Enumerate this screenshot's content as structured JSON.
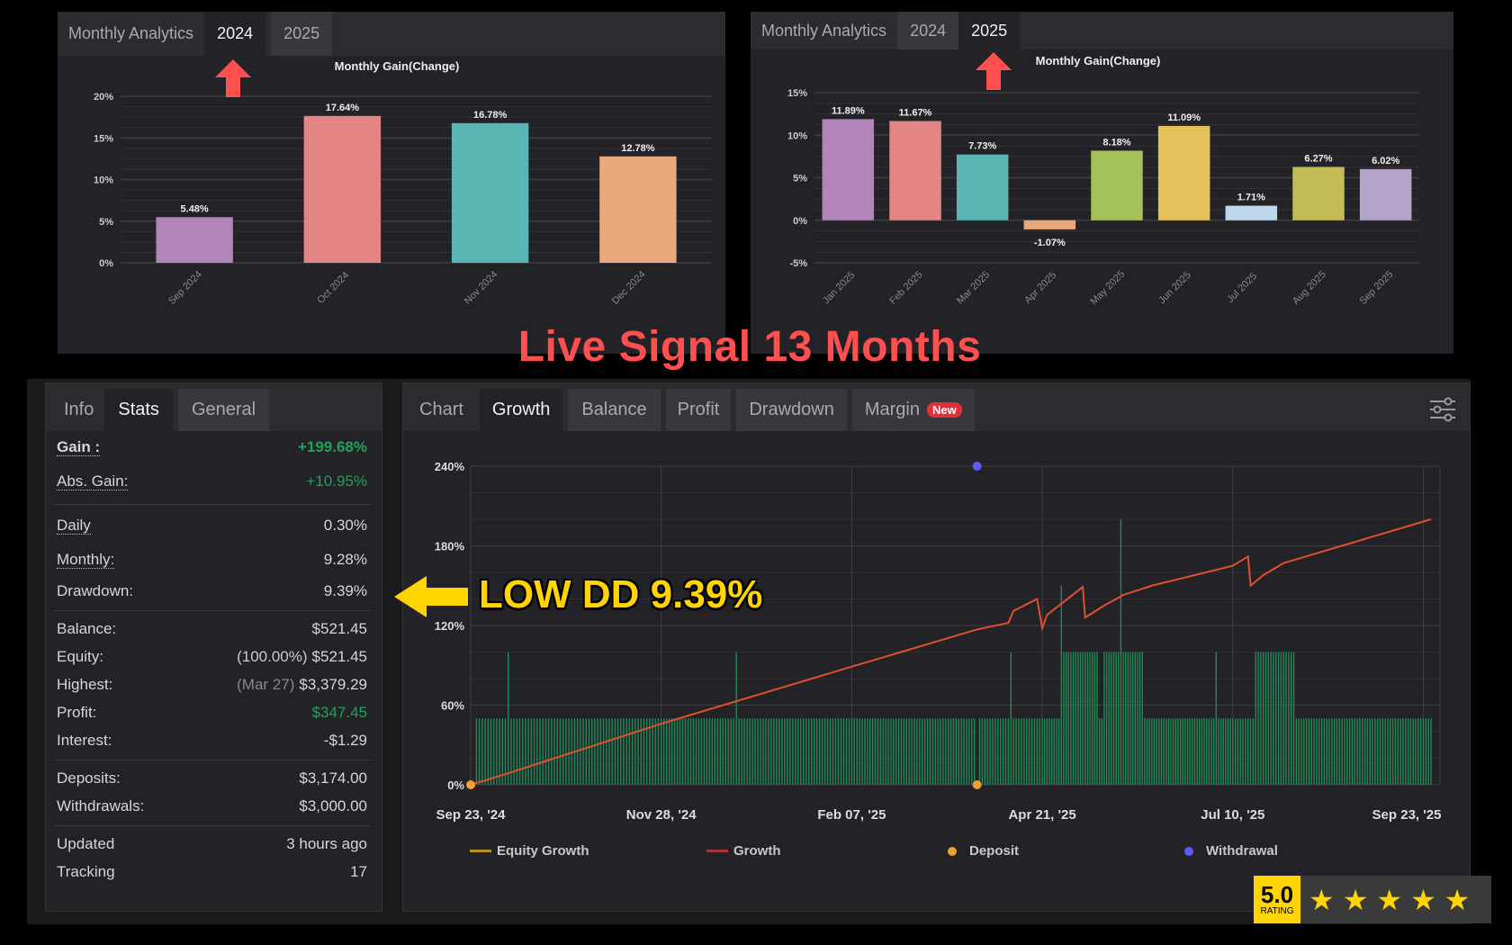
{
  "headline": "Live Signal 13 Months",
  "annotation": "LOW DD 9.39%",
  "analytics_2024": {
    "tabs": [
      "Monthly Analytics",
      "2024",
      "2025"
    ],
    "active_tab": "2024"
  },
  "analytics_2025": {
    "tabs": [
      "Monthly Analytics",
      "2024",
      "2025"
    ],
    "active_tab": "2025"
  },
  "stats": {
    "tabs": [
      "Info",
      "Stats",
      "General"
    ],
    "active_tab": "Stats",
    "gain": {
      "label": "Gain :",
      "value": "+199.68%"
    },
    "abs_gain": {
      "label": "Abs. Gain:",
      "value": "+10.95%"
    },
    "daily": {
      "label": "Daily",
      "value": "0.30%"
    },
    "monthly": {
      "label": "Monthly:",
      "value": "9.28%"
    },
    "drawdown": {
      "label": "Drawdown:",
      "value": "9.39%"
    },
    "balance": {
      "label": "Balance:",
      "value": "$521.45"
    },
    "equity": {
      "label": "Equity:",
      "sub": "(100.00%)",
      "value": "$521.45"
    },
    "highest": {
      "label": "Highest:",
      "sub": "(Mar 27)",
      "value": "$3,379.29"
    },
    "profit": {
      "label": "Profit:",
      "value": "$347.45"
    },
    "interest": {
      "label": "Interest:",
      "value": "-$1.29"
    },
    "deposits": {
      "label": "Deposits:",
      "value": "$3,174.00"
    },
    "withdrawals": {
      "label": "Withdrawals:",
      "value": "$3,000.00"
    },
    "updated": {
      "label": "Updated",
      "value": "3 hours ago"
    },
    "tracking": {
      "label": "Tracking",
      "value": "17"
    }
  },
  "growth_panel": {
    "tabs": [
      "Chart",
      "Growth",
      "Balance",
      "Profit",
      "Drawdown",
      "Margin"
    ],
    "active_tab": "Growth",
    "new_badge": "New",
    "settings_icon": "sliders-icon",
    "legend": [
      "Equity Growth",
      "Growth",
      "Deposit",
      "Withdrawal"
    ]
  },
  "rating": {
    "value": "5.0",
    "label": "RATING",
    "stars": 5
  },
  "colors": {
    "accent_red": "#ff4f4f",
    "annotation_yellow": "#ffd400",
    "gain_green": "#1fa35a",
    "growth_line": "#e0502f",
    "bars_green": "#1e8a55",
    "deposit": "#f0a030",
    "withdrawal": "#5a5aff",
    "equity_line": "#b8902a"
  },
  "chart_data": [
    {
      "type": "bar",
      "title": "Monthly Gain(Change)",
      "categories": [
        "Sep 2024",
        "Oct 2024",
        "Nov 2024",
        "Dec 2024"
      ],
      "values": [
        5.48,
        17.64,
        16.78,
        12.78
      ],
      "labels": [
        "5.48%",
        "17.64%",
        "16.78%",
        "12.78%"
      ],
      "colors": [
        "#b185b7",
        "#e38585",
        "#5ab5b5",
        "#e8a87c"
      ],
      "ylim": [
        0,
        20
      ],
      "yticks": [
        0,
        5,
        10,
        15,
        20
      ],
      "ytick_labels": [
        "0%",
        "5%",
        "10%",
        "15%",
        "20%"
      ],
      "grid": true
    },
    {
      "type": "bar",
      "title": "Monthly Gain(Change)",
      "categories": [
        "Jan 2025",
        "Feb 2025",
        "Mar 2025",
        "Apr 2025",
        "May 2025",
        "Jun 2025",
        "Jul 2025",
        "Aug 2025",
        "Sep 2025"
      ],
      "values": [
        11.89,
        11.67,
        7.73,
        -1.07,
        8.18,
        11.09,
        1.71,
        6.27,
        6.02
      ],
      "labels": [
        "11.89%",
        "11.67%",
        "7.73%",
        "-1.07%",
        "8.18%",
        "11.09%",
        "1.71%",
        "6.27%",
        "6.02%"
      ],
      "colors": [
        "#b185b7",
        "#e38585",
        "#5ab5b5",
        "#e8a87c",
        "#a5c25a",
        "#e3c25a",
        "#bcd8ea",
        "#c2bc55",
        "#b3a3c8"
      ],
      "ylim": [
        -5,
        15
      ],
      "yticks": [
        -5,
        0,
        5,
        10,
        15
      ],
      "ytick_labels": [
        "-5%",
        "0%",
        "5%",
        "10%",
        "15%"
      ],
      "grid": true
    },
    {
      "type": "line",
      "ylim": [
        0,
        240
      ],
      "yticks": [
        0,
        60,
        120,
        180,
        240
      ],
      "ytick_labels": [
        "0%",
        "60%",
        "120%",
        "180%",
        "240%"
      ],
      "x_ticks": [
        {
          "date": "2024-09-23",
          "label": "Sep 23, '24"
        },
        {
          "date": "2024-11-28",
          "label": "Nov 28, '24"
        },
        {
          "date": "2025-02-07",
          "label": "Feb 07, '25"
        },
        {
          "date": "2025-04-21",
          "label": "Apr 21, '25"
        },
        {
          "date": "2025-07-10",
          "label": "Jul 10, '25"
        },
        {
          "date": "2025-09-23",
          "label": "Sep 23, '25"
        }
      ],
      "x_end": "2025-09-29",
      "series": [
        {
          "name": "Growth",
          "points": [
            [
              "2024-09-23",
              0
            ],
            [
              "2024-10-05",
              8
            ],
            [
              "2024-11-28",
              46
            ],
            [
              "2025-02-07",
              89
            ],
            [
              "2025-03-27",
              117
            ],
            [
              "2025-04-08",
              122
            ],
            [
              "2025-04-10",
              131
            ],
            [
              "2025-04-19",
              140
            ],
            [
              "2025-04-21",
              118
            ],
            [
              "2025-04-23",
              128
            ],
            [
              "2025-05-08",
              149
            ],
            [
              "2025-05-09",
              126
            ],
            [
              "2025-05-17",
              135
            ],
            [
              "2025-05-25",
              143
            ],
            [
              "2025-06-06",
              150
            ],
            [
              "2025-07-10",
              165
            ],
            [
              "2025-07-16",
              172
            ],
            [
              "2025-07-17",
              150
            ],
            [
              "2025-07-22",
              158
            ],
            [
              "2025-07-30",
              167
            ],
            [
              "2025-09-26",
              200
            ]
          ]
        }
      ],
      "bars": {
        "start": "2024-09-25",
        "end": "2025-09-26",
        "base": 50,
        "gaps": [
          "2025-03-27"
        ],
        "high_ranges": [
          [
            "2025-04-29",
            "2025-05-14",
            100
          ],
          [
            "2025-05-17",
            "2025-06-02",
            100
          ],
          [
            "2025-07-19",
            "2025-08-03",
            100
          ]
        ],
        "spikes": [
          [
            "2024-10-06",
            100
          ],
          [
            "2024-12-26",
            100
          ],
          [
            "2025-04-09",
            100
          ],
          [
            "2025-04-29",
            150
          ],
          [
            "2025-05-24",
            200
          ],
          [
            "2025-07-03",
            100
          ]
        ]
      },
      "deposits": [
        [
          "2024-09-23",
          0
        ],
        [
          "2025-03-27",
          0
        ]
      ],
      "withdrawals": [
        [
          "2025-03-27",
          240
        ]
      ],
      "grid": true,
      "legend": "bottom"
    }
  ]
}
